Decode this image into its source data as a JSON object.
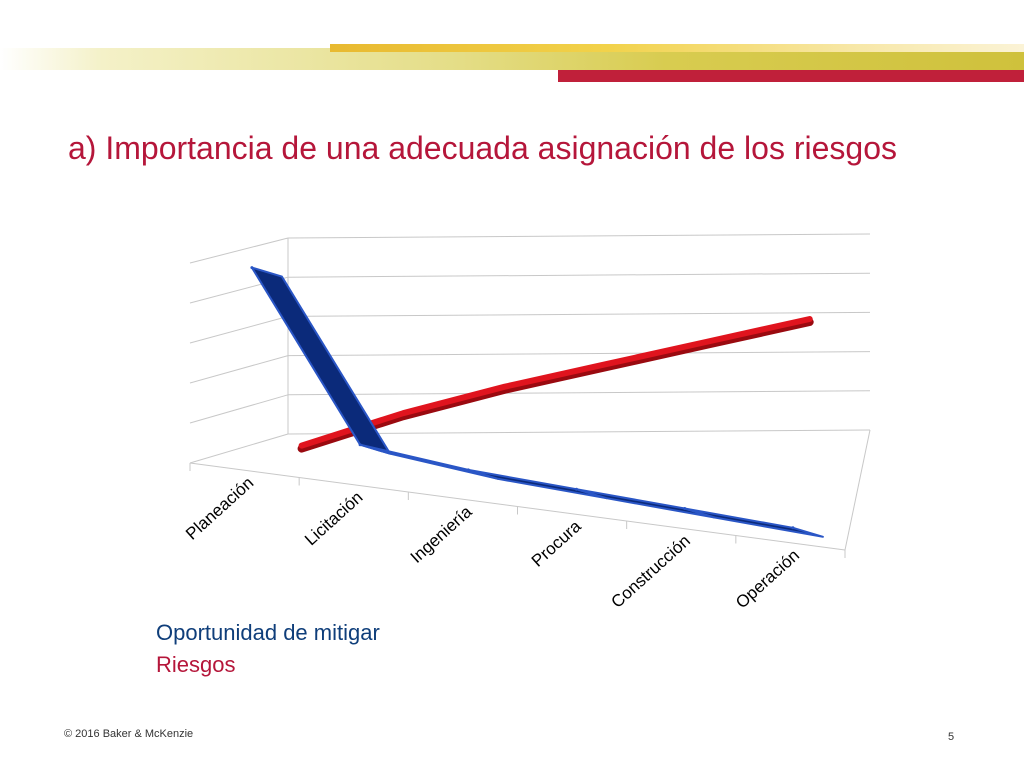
{
  "slide": {
    "title": "a) Importancia de una adecuada asignación de los riesgos",
    "footer": "© 2016 Baker & McKenzie",
    "page_number": "5"
  },
  "colors": {
    "title": "#b5163a",
    "band_red": "#c0203a",
    "band_gold": "#d8cc50",
    "series_blue": "#0b2a7a",
    "series_blue_edge": "#2a56c6",
    "series_red": "#e0141e",
    "grid": "#c8c8c8"
  },
  "chart_data": {
    "type": "line",
    "style": "3d-ribbon",
    "title": "",
    "xlabel": "",
    "ylabel": "",
    "categories": [
      "Planeación",
      "Licitación",
      "Ingeniería",
      "Procura",
      "Construcción",
      "Operación"
    ],
    "ylim": [
      0,
      5
    ],
    "grid": true,
    "legend": "bottom-left",
    "series": [
      {
        "name": "Oportunidad de mitigar",
        "color": "#0b2a7a",
        "values": [
          5.0,
          0.9,
          0.6,
          0.45,
          0.3,
          0.15
        ]
      },
      {
        "name": "Riesgos",
        "color": "#e0141e",
        "values": [
          0.05,
          1.0,
          1.8,
          2.5,
          3.2,
          3.9
        ]
      }
    ]
  }
}
